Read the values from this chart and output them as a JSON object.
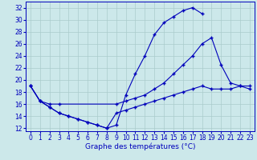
{
  "background_color": "#cce8ea",
  "grid_color": "#aacccc",
  "line_color": "#0000bb",
  "xlabel": "Graphe des températures (°C)",
  "yticks": [
    12,
    14,
    16,
    18,
    20,
    22,
    24,
    26,
    28,
    30,
    32
  ],
  "xticks": [
    0,
    1,
    2,
    3,
    4,
    5,
    6,
    7,
    8,
    9,
    10,
    11,
    12,
    13,
    14,
    15,
    16,
    17,
    18,
    19,
    20,
    21,
    22,
    23
  ],
  "xlim": [
    -0.5,
    23.5
  ],
  "ylim": [
    11.5,
    33.0
  ],
  "line1_x": [
    0,
    1,
    2,
    3,
    4,
    5,
    6,
    7,
    8,
    9,
    10,
    11,
    12,
    13,
    14,
    15,
    16,
    17,
    18
  ],
  "line1_y": [
    19.0,
    16.5,
    15.5,
    14.5,
    14.0,
    13.5,
    13.0,
    12.5,
    12.0,
    12.5,
    17.5,
    21.0,
    24.0,
    27.5,
    29.5,
    30.5,
    31.5,
    32.0,
    31.0
  ],
  "line2_x": [
    0,
    1,
    2,
    3,
    9,
    10,
    11,
    12,
    13,
    14,
    15,
    16,
    17,
    18,
    19,
    20,
    21,
    22,
    23
  ],
  "line2_y": [
    19.0,
    16.5,
    16.0,
    16.0,
    16.0,
    16.5,
    17.0,
    17.5,
    18.5,
    19.5,
    21.0,
    22.5,
    24.0,
    26.0,
    27.0,
    22.5,
    19.5,
    19.0,
    18.5
  ],
  "line3_x": [
    0,
    1,
    2,
    3,
    4,
    5,
    6,
    7,
    8,
    9,
    10,
    11,
    12,
    13,
    14,
    15,
    16,
    17,
    18,
    19,
    20,
    21,
    22,
    23
  ],
  "line3_y": [
    19.0,
    16.5,
    15.5,
    14.5,
    14.0,
    13.5,
    13.0,
    12.5,
    12.0,
    14.5,
    15.0,
    15.5,
    16.0,
    16.5,
    17.0,
    17.5,
    18.0,
    18.5,
    19.0,
    18.5,
    18.5,
    18.5,
    19.0,
    19.0
  ],
  "xlabel_fontsize": 6.5,
  "tick_fontsize": 5.5
}
